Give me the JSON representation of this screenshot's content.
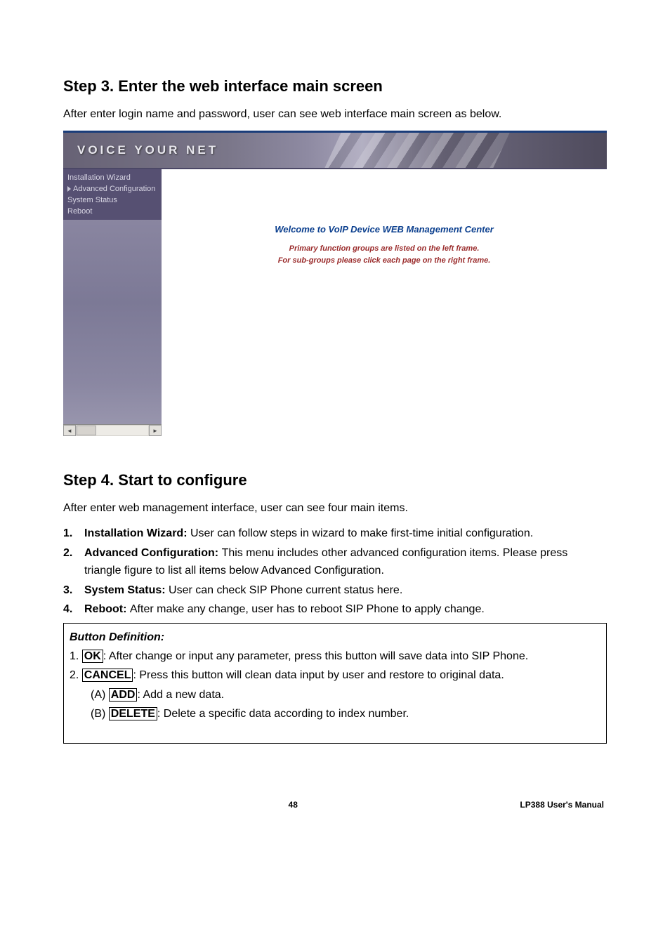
{
  "step3": {
    "heading": "Step 3. Enter the web interface main screen",
    "intro": "After enter login name and password, user can see web interface main screen as below."
  },
  "screenshot": {
    "banner_text": "VOICE YOUR NET",
    "sidebar": {
      "items": [
        {
          "label": "Installation Wizard",
          "has_arrow": false
        },
        {
          "label": "Advanced Configuration",
          "has_arrow": true
        },
        {
          "label": "System Status",
          "has_arrow": false
        },
        {
          "label": "Reboot",
          "has_arrow": false
        }
      ]
    },
    "main": {
      "welcome_title": "Welcome to VoIP Device WEB Management Center",
      "welcome_line1": "Primary function groups are listed on the left frame.",
      "welcome_line2": "For sub-groups please click each page on the right frame."
    }
  },
  "step4": {
    "heading": "Step 4. Start to configure",
    "intro": "After enter web management interface, user can see four main items.",
    "items": [
      {
        "num": "1.",
        "label": "Installation Wizard: ",
        "text": "User can follow steps in wizard to make first-time initial configuration."
      },
      {
        "num": "2.",
        "label": "Advanced Configuration: ",
        "text": "This menu includes other advanced configuration items. Please press triangle figure to list all items below Advanced Configuration."
      },
      {
        "num": "3.",
        "label": "System Status: ",
        "text": "User can check SIP Phone current status here."
      },
      {
        "num": "4.",
        "label": "Reboot: ",
        "text": "After make any change, user has to reboot SIP Phone to apply change."
      }
    ]
  },
  "button_def": {
    "title": "Button Definition:",
    "line1_pre": "1. ",
    "line1_btn": "OK",
    "line1_post": ": After change or input any parameter, press this button will save data into SIP Phone.",
    "line2_pre": "2. ",
    "line2_btn": "CANCEL",
    "line2_post": ": Press this button will clean data input by user and restore to original data.",
    "lineA_pre": "(A) ",
    "lineA_btn": "ADD",
    "lineA_post": ": Add a new data.",
    "lineB_pre": "(B) ",
    "lineB_btn": "DELETE",
    "lineB_post": ": Delete a specific data according to index number."
  },
  "footer": {
    "page": "48",
    "manual": "LP388  User's Manual"
  }
}
